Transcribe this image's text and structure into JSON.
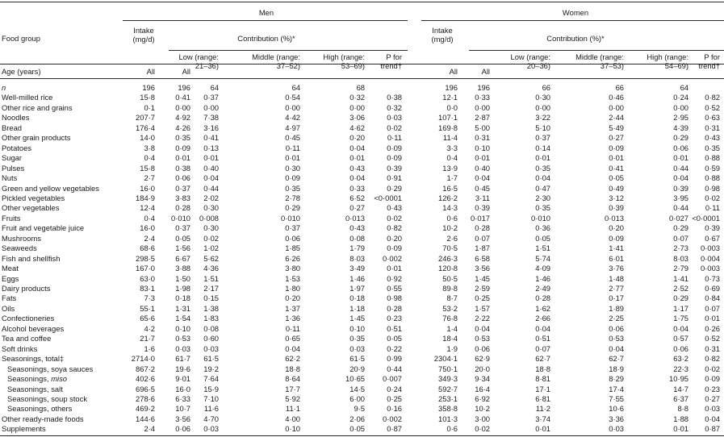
{
  "header": {
    "col0": "Food group",
    "age_label": "Age (years)",
    "men": "Men",
    "women": "Women",
    "intake": [
      "Intake",
      "(mg/d)"
    ],
    "contribution": "Contribution (%)*",
    "subheads": [
      [
        "Low (range:",
        "21–36)"
      ],
      [
        "Middle (range:",
        "37–52)"
      ],
      [
        "High (range:",
        "53–69)"
      ],
      [
        "Low (range:",
        "20–36)"
      ],
      [
        "Middle (range:",
        "37–53)"
      ],
      [
        "High (range:",
        "54–69)"
      ]
    ],
    "trend": [
      "P for",
      "trend†"
    ],
    "all": "All"
  },
  "rows": [
    {
      "label": "n",
      "italic": true,
      "vals": [
        "196",
        "196",
        "64",
        "64",
        "68",
        "",
        "196",
        "196",
        "66",
        "66",
        "64",
        ""
      ]
    },
    {
      "label": "Well-milled rice",
      "vals": [
        "15·8",
        "0·41",
        "0·37",
        "0·54",
        "0·32",
        "0·38",
        "12·1",
        "0·33",
        "0·30",
        "0·46",
        "0·24",
        "0·82"
      ]
    },
    {
      "label": "Other rice and grains",
      "vals": [
        "0·1",
        "0·00",
        "0·00",
        "0·00",
        "0·00",
        "0·32",
        "0·0",
        "0·00",
        "0·00",
        "0·00",
        "0·00",
        "0·52"
      ]
    },
    {
      "label": "Noodles",
      "vals": [
        "207·7",
        "4·92",
        "7·38",
        "4·42",
        "3·06",
        "0·03",
        "107·1",
        "2·87",
        "3·22",
        "2·44",
        "2·95",
        "0·63"
      ]
    },
    {
      "label": "Bread",
      "vals": [
        "176·4",
        "4·26",
        "3·16",
        "4·97",
        "4·62",
        "0·02",
        "169·8",
        "5·00",
        "5·10",
        "5·49",
        "4·39",
        "0·31"
      ]
    },
    {
      "label": "Other grain products",
      "vals": [
        "14·0",
        "0·35",
        "0·41",
        "0·45",
        "0·20",
        "0·11",
        "11·4",
        "0·31",
        "0·37",
        "0·27",
        "0·29",
        "0·43"
      ]
    },
    {
      "label": "Potatoes",
      "vals": [
        "3·8",
        "0·09",
        "0·13",
        "0·11",
        "0·04",
        "0·09",
        "3·3",
        "0·10",
        "0·14",
        "0·09",
        "0·06",
        "0·35"
      ]
    },
    {
      "label": "Sugar",
      "vals": [
        "0·4",
        "0·01",
        "0·01",
        "0·01",
        "0·01",
        "0·09",
        "0·4",
        "0·01",
        "0·01",
        "0·01",
        "0·01",
        "0·88"
      ]
    },
    {
      "label": "Pulses",
      "vals": [
        "15·8",
        "0·38",
        "0·40",
        "0·30",
        "0·43",
        "0·39",
        "13·9",
        "0·40",
        "0·35",
        "0·41",
        "0·44",
        "0·59"
      ]
    },
    {
      "label": "Nuts",
      "vals": [
        "2·7",
        "0·06",
        "0·04",
        "0·09",
        "0·04",
        "0·91",
        "1·7",
        "0·04",
        "0·04",
        "0·05",
        "0·04",
        "0·88"
      ]
    },
    {
      "label": "Green and yellow vegetables",
      "vals": [
        "16·0",
        "0·37",
        "0·44",
        "0·35",
        "0·33",
        "0·29",
        "16·5",
        "0·45",
        "0·47",
        "0·49",
        "0·39",
        "0·98"
      ]
    },
    {
      "label": "Pickled vegetables",
      "vals": [
        "184·9",
        "3·83",
        "2·02",
        "2·78",
        "6·52",
        "<0·0001",
        "126·2",
        "3·11",
        "2·30",
        "3·12",
        "3·95",
        "0·02"
      ]
    },
    {
      "label": "Other vegetables",
      "vals": [
        "12·4",
        "0·28",
        "0·30",
        "0·29",
        "0·27",
        "0·43",
        "14·3",
        "0·39",
        "0·35",
        "0·39",
        "0·44",
        "0·11"
      ]
    },
    {
      "label": "Fruits",
      "vals": [
        "0·4",
        "0·010",
        "0·008",
        "0·010",
        "0·013",
        "0·02",
        "0·6",
        "0·017",
        "0·010",
        "0·013",
        "0·027",
        "<0·0001"
      ]
    },
    {
      "label": "Fruit and vegetable juice",
      "vals": [
        "16·0",
        "0·37",
        "0·30",
        "0·37",
        "0·43",
        "0·82",
        "10·2",
        "0·28",
        "0·36",
        "0·20",
        "0·29",
        "0·39"
      ]
    },
    {
      "label": "Mushrooms",
      "vals": [
        "2·4",
        "0·05",
        "0·02",
        "0·06",
        "0·08",
        "0·20",
        "2·6",
        "0·07",
        "0·05",
        "0·09",
        "0·07",
        "0·67"
      ]
    },
    {
      "label": "Seaweeds",
      "vals": [
        "68·6",
        "1·56",
        "1·02",
        "1·85",
        "1·79",
        "0·09",
        "70·5",
        "1·87",
        "1·51",
        "1·41",
        "2·73",
        "0·003"
      ]
    },
    {
      "label": "Fish and shellfish",
      "vals": [
        "298·5",
        "6·67",
        "5·62",
        "6·26",
        "8·03",
        "0·002",
        "246·3",
        "6·58",
        "5·74",
        "6·01",
        "8·03",
        "0·004"
      ]
    },
    {
      "label": "Meat",
      "vals": [
        "167·0",
        "3·88",
        "4·36",
        "3·80",
        "3·49",
        "0·01",
        "120·8",
        "3·56",
        "4·09",
        "3·76",
        "2·79",
        "0·003"
      ]
    },
    {
      "label": "Eggs",
      "vals": [
        "63·0",
        "1·50",
        "1·51",
        "1·53",
        "1·46",
        "0·92",
        "50·5",
        "1·45",
        "1·46",
        "1·48",
        "1·41",
        "0·73"
      ]
    },
    {
      "label": "Dairy products",
      "vals": [
        "83·1",
        "1·98",
        "2·17",
        "1·80",
        "1·97",
        "0·55",
        "89·8",
        "2·59",
        "2·49",
        "2·77",
        "2·52",
        "0·69"
      ]
    },
    {
      "label": "Fats",
      "vals": [
        "7·3",
        "0·18",
        "0·15",
        "0·20",
        "0·18",
        "0·98",
        "8·7",
        "0·25",
        "0·28",
        "0·17",
        "0·29",
        "0·84"
      ]
    },
    {
      "label": "Oils",
      "vals": [
        "55·1",
        "1·31",
        "1·38",
        "1·37",
        "1·18",
        "0·28",
        "53·2",
        "1·57",
        "1·62",
        "1·89",
        "1·17",
        "0·07"
      ]
    },
    {
      "label": "Confectioneries",
      "vals": [
        "65·6",
        "1·54",
        "1·83",
        "1·36",
        "1·45",
        "0·23",
        "76·8",
        "2·22",
        "2·66",
        "2·25",
        "1·75",
        "0·01"
      ]
    },
    {
      "label": "Alcohol beverages",
      "vals": [
        "4·2",
        "0·10",
        "0·08",
        "0·11",
        "0·10",
        "0·51",
        "1·4",
        "0·04",
        "0·04",
        "0·06",
        "0·04",
        "0·26"
      ]
    },
    {
      "label": "Tea and coffee",
      "vals": [
        "21·7",
        "0·53",
        "0·60",
        "0·65",
        "0·35",
        "0·05",
        "18·4",
        "0·53",
        "0·51",
        "0·53",
        "0·57",
        "0·52"
      ]
    },
    {
      "label": "Soft drinks",
      "vals": [
        "1·6",
        "0·03",
        "0·03",
        "0·04",
        "0·03",
        "0·22",
        "1·9",
        "0·06",
        "0·07",
        "0·04",
        "0·06",
        "0·31"
      ]
    },
    {
      "label": "Seasonings, total‡",
      "vals": [
        "2714·0",
        "61·7",
        "61·5",
        "62·2",
        "61·5",
        "0·99",
        "2304·1",
        "62·9",
        "62·7",
        "62·7",
        "63·2",
        "0·82"
      ]
    },
    {
      "label": "Seasonings, soya sauces",
      "indent": true,
      "vals": [
        "867·2",
        "19·6",
        "19·2",
        "18·8",
        "20·9",
        "0·44",
        "750·1",
        "20·0",
        "18·8",
        "18·9",
        "22·3",
        "0·02"
      ]
    },
    {
      "label_pre": "Seasonings, ",
      "label_it": "miso",
      "indent": true,
      "vals": [
        "402·6",
        "9·01",
        "7·64",
        "8·64",
        "10·65",
        "0·007",
        "349·3",
        "9·34",
        "8·81",
        "8·29",
        "10·95",
        "0·09"
      ]
    },
    {
      "label": "Seasonings, salt",
      "indent": true,
      "vals": [
        "696·5",
        "16·0",
        "15·9",
        "17·7",
        "14·5",
        "0·24",
        "592·7",
        "16·4",
        "17·1",
        "17·4",
        "14·7",
        "0·23"
      ]
    },
    {
      "label": "Seasonings, soup stock",
      "indent": true,
      "vals": [
        "278·6",
        "6·33",
        "7·10",
        "5·92",
        "6·00",
        "0·25",
        "253·1",
        "6·92",
        "6·81",
        "7·55",
        "6·37",
        "0·27"
      ]
    },
    {
      "label": "Seasonings, others",
      "indent": true,
      "vals": [
        "469·2",
        "10·7",
        "11·6",
        "11·1",
        "9·5",
        "0·16",
        "358·8",
        "10·2",
        "11·2",
        "10·6",
        "8·8",
        "0·03"
      ]
    },
    {
      "label": "Other ready-made foods",
      "vals": [
        "144·6",
        "3·56",
        "4·70",
        "4·00",
        "2·06",
        "0·002",
        "101·3",
        "3·00",
        "3·74",
        "3·36",
        "1·88",
        "0·04"
      ]
    },
    {
      "label": "Supplements",
      "vals": [
        "2·4",
        "0·06",
        "0·03",
        "0·10",
        "0·05",
        "0·87",
        "0·6",
        "0·02",
        "0·01",
        "0·03",
        "0·01",
        "0·87"
      ]
    }
  ]
}
